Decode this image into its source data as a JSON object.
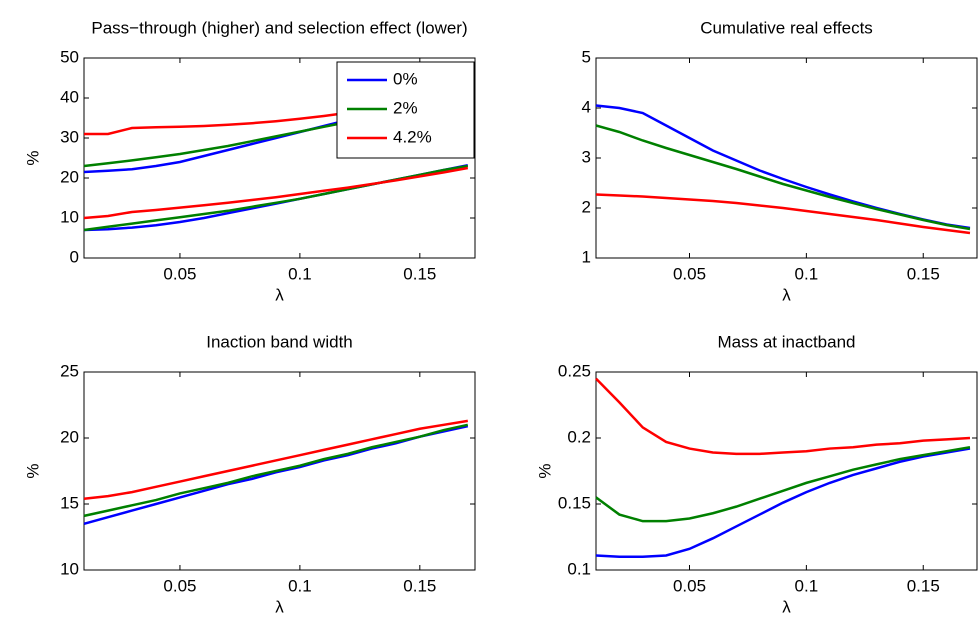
{
  "chart_data": [
    {
      "type": "line",
      "title": "Pass−through (higher) and selection effect (lower)",
      "x_label": "λ",
      "y_label": "%",
      "x": [
        0.01,
        0.02,
        0.03,
        0.04,
        0.05,
        0.06,
        0.07,
        0.08,
        0.09,
        0.1,
        0.11,
        0.12,
        0.13,
        0.14,
        0.15,
        0.16,
        0.17
      ],
      "xlim": [
        0.01,
        0.173
      ],
      "xticks": [
        0.05,
        0.1,
        0.15
      ],
      "ylim": [
        0,
        50
      ],
      "yticks": [
        0,
        10,
        20,
        30,
        40,
        50
      ],
      "legend": "upper right",
      "series": [
        {
          "name": "0%",
          "color": "#0000ff",
          "values": [
            21.5,
            21.8,
            22.2,
            23,
            24,
            25.5,
            27,
            28.5,
            30,
            31.5,
            33,
            34.5,
            36,
            37.5,
            38.5,
            39.5,
            40.5
          ],
          "values_lower": [
            7,
            7.2,
            7.6,
            8.2,
            9,
            10,
            11.2,
            12.4,
            13.6,
            14.8,
            16,
            17.2,
            18.4,
            19.6,
            20.8,
            22,
            23.2
          ]
        },
        {
          "name": "2%",
          "color": "#008000",
          "values": [
            23,
            23.7,
            24.4,
            25.2,
            26,
            27,
            28,
            29.2,
            30.4,
            31.6,
            32.8,
            34,
            35.3,
            36.6,
            37.8,
            39,
            40.3
          ],
          "values_lower": [
            7,
            7.8,
            8.6,
            9.4,
            10.2,
            11,
            11.8,
            12.8,
            13.8,
            14.8,
            16,
            17.2,
            18.4,
            19.6,
            20.8,
            22,
            23
          ]
        },
        {
          "name": "4.2%",
          "color": "#ff0000",
          "values": [
            31,
            31,
            32.5,
            32.7,
            32.8,
            33,
            33.3,
            33.7,
            34.2,
            34.8,
            35.5,
            36.3,
            37,
            38,
            39,
            40,
            41.3
          ],
          "values_lower": [
            10,
            10.5,
            11.5,
            12,
            12.6,
            13.2,
            13.8,
            14.5,
            15.2,
            16,
            16.8,
            17.6,
            18.5,
            19.4,
            20.4,
            21.4,
            22.5
          ]
        }
      ]
    },
    {
      "type": "line",
      "title": "Cumulative real effects",
      "x_label": "λ",
      "x": [
        0.01,
        0.02,
        0.03,
        0.04,
        0.05,
        0.06,
        0.07,
        0.08,
        0.09,
        0.1,
        0.11,
        0.12,
        0.13,
        0.14,
        0.15,
        0.16,
        0.17
      ],
      "xlim": [
        0.01,
        0.173
      ],
      "xticks": [
        0.05,
        0.1,
        0.15
      ],
      "ylim": [
        1,
        5
      ],
      "yticks": [
        1,
        2,
        3,
        4,
        5
      ],
      "series": [
        {
          "color": "#0000ff",
          "values": [
            4.05,
            4.0,
            3.9,
            3.65,
            3.4,
            3.15,
            2.95,
            2.75,
            2.58,
            2.42,
            2.27,
            2.13,
            2.0,
            1.88,
            1.77,
            1.67,
            1.6
          ]
        },
        {
          "color": "#008000",
          "values": [
            3.65,
            3.52,
            3.35,
            3.2,
            3.06,
            2.92,
            2.78,
            2.63,
            2.48,
            2.35,
            2.22,
            2.1,
            1.98,
            1.87,
            1.76,
            1.66,
            1.58
          ]
        },
        {
          "color": "#ff0000",
          "values": [
            2.27,
            2.25,
            2.23,
            2.2,
            2.17,
            2.14,
            2.1,
            2.05,
            2.0,
            1.94,
            1.88,
            1.82,
            1.76,
            1.69,
            1.62,
            1.56,
            1.5
          ]
        }
      ]
    },
    {
      "type": "line",
      "title": "Inaction band width",
      "x_label": "λ",
      "y_label": "%",
      "x": [
        0.01,
        0.02,
        0.03,
        0.04,
        0.05,
        0.06,
        0.07,
        0.08,
        0.09,
        0.1,
        0.11,
        0.12,
        0.13,
        0.14,
        0.15,
        0.16,
        0.17
      ],
      "xlim": [
        0.01,
        0.173
      ],
      "xticks": [
        0.05,
        0.1,
        0.15
      ],
      "ylim": [
        10,
        25
      ],
      "yticks": [
        10,
        15,
        20,
        25
      ],
      "series": [
        {
          "color": "#0000ff",
          "values": [
            13.5,
            14.0,
            14.5,
            15.0,
            15.5,
            16.0,
            16.5,
            16.9,
            17.4,
            17.8,
            18.3,
            18.7,
            19.2,
            19.6,
            20.1,
            20.5,
            20.9
          ]
        },
        {
          "color": "#008000",
          "values": [
            14.1,
            14.5,
            14.9,
            15.3,
            15.8,
            16.2,
            16.6,
            17.1,
            17.5,
            17.9,
            18.4,
            18.8,
            19.3,
            19.7,
            20.1,
            20.6,
            21.0
          ]
        },
        {
          "color": "#ff0000",
          "values": [
            15.4,
            15.6,
            15.9,
            16.3,
            16.7,
            17.1,
            17.5,
            17.9,
            18.3,
            18.7,
            19.1,
            19.5,
            19.9,
            20.3,
            20.7,
            21.0,
            21.3
          ]
        }
      ]
    },
    {
      "type": "line",
      "title": "Mass at inactband",
      "x_label": "λ",
      "y_label": "%",
      "x": [
        0.01,
        0.02,
        0.03,
        0.04,
        0.05,
        0.06,
        0.07,
        0.08,
        0.09,
        0.1,
        0.11,
        0.12,
        0.13,
        0.14,
        0.15,
        0.16,
        0.17
      ],
      "xlim": [
        0.01,
        0.173
      ],
      "xticks": [
        0.05,
        0.1,
        0.15
      ],
      "ylim": [
        0.1,
        0.25
      ],
      "yticks": [
        0.1,
        0.15,
        0.2,
        0.25
      ],
      "series": [
        {
          "color": "#0000ff",
          "values": [
            0.111,
            0.11,
            0.11,
            0.111,
            0.116,
            0.124,
            0.133,
            0.142,
            0.151,
            0.159,
            0.166,
            0.172,
            0.177,
            0.182,
            0.186,
            0.189,
            0.192
          ]
        },
        {
          "color": "#008000",
          "values": [
            0.155,
            0.142,
            0.137,
            0.137,
            0.139,
            0.143,
            0.148,
            0.154,
            0.16,
            0.166,
            0.171,
            0.176,
            0.18,
            0.184,
            0.187,
            0.19,
            0.193
          ]
        },
        {
          "color": "#ff0000",
          "values": [
            0.245,
            0.227,
            0.208,
            0.197,
            0.192,
            0.189,
            0.188,
            0.188,
            0.189,
            0.19,
            0.192,
            0.193,
            0.195,
            0.196,
            0.198,
            0.199,
            0.2
          ]
        }
      ]
    }
  ]
}
